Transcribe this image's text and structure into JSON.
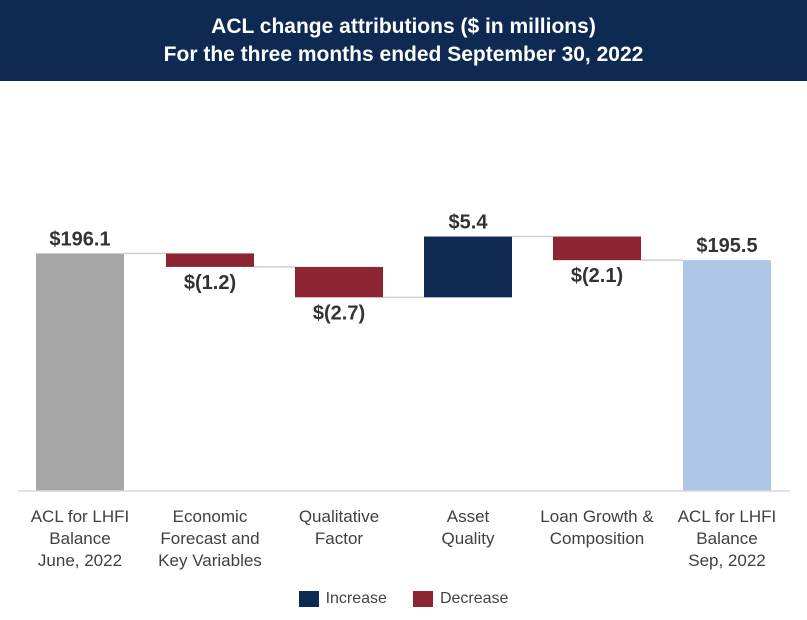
{
  "header": {
    "title_line1": "ACL change attributions ($ in millions)",
    "title_line2": "For the three months ended September 30, 2022"
  },
  "colors": {
    "header_bg": "#0e2a52",
    "start": "#a6a6a6",
    "end": "#adc6e5",
    "increase": "#0e2a52",
    "decrease": "#8c2432",
    "connector": "#cfcfcf"
  },
  "legend": {
    "increase_label": "Increase",
    "decrease_label": "Decrease"
  },
  "chart_data": {
    "type": "waterfall",
    "title": "ACL change attributions ($ in millions)",
    "subtitle": "For the three months ended September 30, 2022",
    "categories": [
      [
        "ACL for LHFI",
        "Balance",
        "June, 2022"
      ],
      [
        "Economic",
        "Forecast and",
        "Key Variables"
      ],
      [
        "Qualitative",
        "Factor"
      ],
      [
        "Asset",
        "Quality"
      ],
      [
        "Loan Growth &",
        "Composition"
      ],
      [
        "ACL for LHFI",
        "Balance",
        "Sep, 2022"
      ]
    ],
    "bars": [
      {
        "kind": "total",
        "value": 196.1,
        "label": "$196.1",
        "label_pos": "above"
      },
      {
        "kind": "decrease",
        "value": -1.2,
        "label": "$(1.2)",
        "label_pos": "below"
      },
      {
        "kind": "decrease",
        "value": -2.7,
        "label": "$(2.7)",
        "label_pos": "below"
      },
      {
        "kind": "increase",
        "value": 5.4,
        "label": "$5.4",
        "label_pos": "above"
      },
      {
        "kind": "decrease",
        "value": -2.1,
        "label": "$(2.1)",
        "label_pos": "below"
      },
      {
        "kind": "total",
        "value": 195.5,
        "label": "$195.5",
        "label_pos": "above"
      }
    ],
    "ylim": [
      175,
      200
    ],
    "xlabel": "",
    "ylabel": "",
    "legend": [
      "Increase",
      "Decrease"
    ]
  }
}
